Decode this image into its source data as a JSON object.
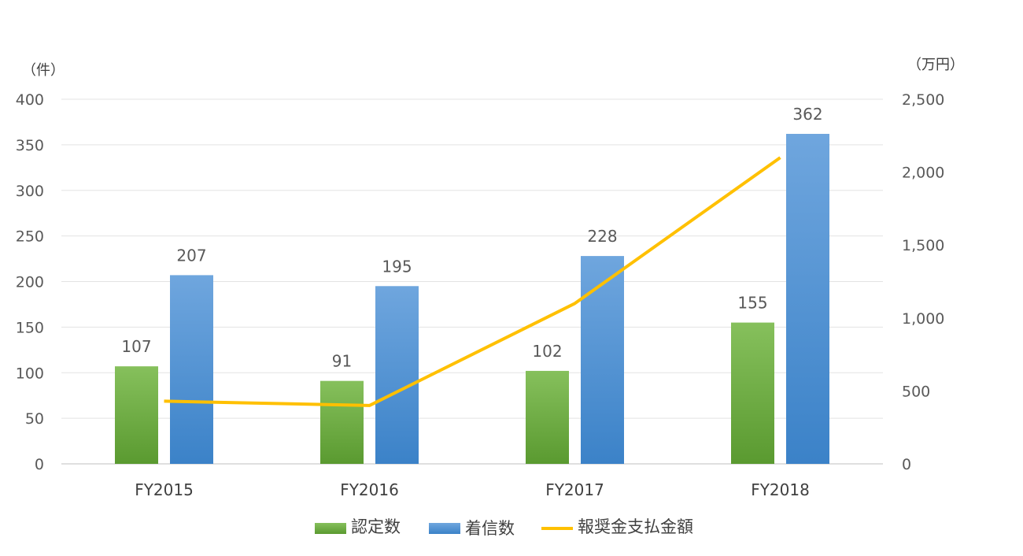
{
  "chart_data": {
    "type": "bar",
    "categories": [
      "FY2015",
      "FY2016",
      "FY2017",
      "FY2018"
    ],
    "series": [
      {
        "name": "認定数",
        "kind": "bar",
        "axis": "left",
        "values": [
          107,
          91,
          102,
          155
        ],
        "color": "#6aab3e"
      },
      {
        "name": "着信数",
        "kind": "bar",
        "axis": "left",
        "values": [
          207,
          195,
          228,
          362
        ],
        "color": "#4a90d6"
      },
      {
        "name": "報奨金支払金額",
        "kind": "line",
        "axis": "right",
        "values": [
          430,
          400,
          1100,
          2100
        ],
        "color": "#ffc000"
      }
    ],
    "left_axis": {
      "unit": "（件）",
      "min": 0,
      "max": 400,
      "step": 50,
      "tick_labels": [
        "0",
        "50",
        "100",
        "150",
        "200",
        "250",
        "300",
        "350",
        "400"
      ]
    },
    "right_axis": {
      "unit": "（万円）",
      "min": 0,
      "max": 2500,
      "step": 500,
      "tick_labels": [
        "0",
        "500",
        "1,000",
        "1,500",
        "2,000",
        "2,500"
      ]
    },
    "data_labels": {
      "認定数": [
        "107",
        "91",
        "102",
        "155"
      ],
      "着信数": [
        "207",
        "195",
        "228",
        "362"
      ]
    },
    "grid": true,
    "legend_position": "bottom"
  }
}
